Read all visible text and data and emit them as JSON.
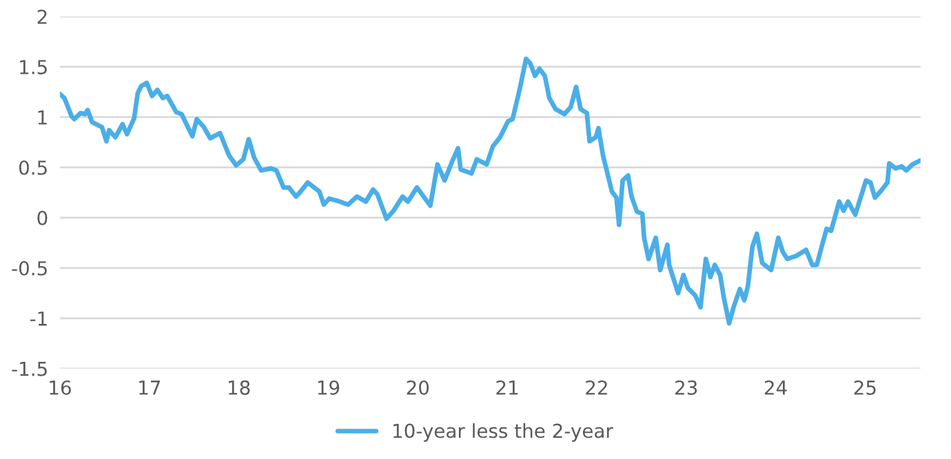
{
  "chart_data": {
    "type": "line",
    "xlim": [
      16,
      25.62
    ],
    "xticks": [
      16,
      17,
      18,
      19,
      20,
      21,
      22,
      23,
      24,
      25
    ],
    "ylim": [
      -1.5,
      2
    ],
    "yticks": [
      -1.5,
      -1,
      -0.5,
      0,
      0.5,
      1,
      1.5,
      2
    ],
    "grid": "y",
    "legend": "bottom",
    "line_style": "solid",
    "series": [
      {
        "name": "10-year less the 2-year",
        "color": "#4aaee8",
        "x": [
          16.0,
          16.05,
          16.13,
          16.16,
          16.23,
          16.28,
          16.31,
          16.36,
          16.47,
          16.52,
          16.55,
          16.62,
          16.7,
          16.75,
          16.83,
          16.87,
          16.91,
          16.97,
          17.03,
          17.09,
          17.15,
          17.2,
          17.3,
          17.36,
          17.48,
          17.53,
          17.61,
          17.68,
          17.79,
          17.89,
          17.97,
          18.05,
          18.11,
          18.17,
          18.25,
          18.36,
          18.42,
          18.5,
          18.56,
          18.64,
          18.69,
          18.77,
          18.9,
          18.95,
          19.01,
          19.13,
          19.22,
          19.32,
          19.42,
          19.5,
          19.55,
          19.65,
          19.73,
          19.83,
          19.89,
          19.99,
          20.14,
          20.22,
          20.3,
          20.38,
          20.45,
          20.48,
          20.6,
          20.66,
          20.77,
          20.84,
          20.92,
          21.01,
          21.06,
          21.14,
          21.21,
          21.26,
          21.31,
          21.36,
          21.42,
          21.47,
          21.54,
          21.64,
          21.71,
          21.77,
          21.82,
          21.89,
          21.92,
          21.99,
          22.02,
          22.07,
          22.12,
          22.17,
          22.22,
          22.25,
          22.29,
          22.35,
          22.39,
          22.45,
          22.51,
          22.53,
          22.58,
          22.66,
          22.71,
          22.79,
          22.81,
          22.91,
          22.97,
          23.02,
          23.1,
          23.16,
          23.22,
          23.27,
          23.32,
          23.38,
          23.42,
          23.48,
          23.53,
          23.6,
          23.65,
          23.69,
          23.74,
          23.79,
          23.85,
          23.95,
          24.03,
          24.08,
          24.13,
          24.23,
          24.34,
          24.41,
          24.46,
          24.52,
          24.57,
          24.62,
          24.71,
          24.76,
          24.81,
          24.89,
          25.01,
          25.06,
          25.11,
          25.19,
          25.25,
          25.27,
          25.34,
          25.41,
          25.46,
          25.53,
          25.62
        ],
        "values": [
          1.23,
          1.19,
          1.01,
          0.98,
          1.04,
          1.03,
          1.07,
          0.95,
          0.9,
          0.76,
          0.87,
          0.8,
          0.93,
          0.83,
          0.99,
          1.24,
          1.31,
          1.34,
          1.21,
          1.27,
          1.19,
          1.21,
          1.05,
          1.03,
          0.81,
          0.98,
          0.9,
          0.79,
          0.84,
          0.62,
          0.52,
          0.58,
          0.78,
          0.6,
          0.47,
          0.49,
          0.47,
          0.3,
          0.3,
          0.21,
          0.26,
          0.35,
          0.26,
          0.13,
          0.19,
          0.16,
          0.13,
          0.21,
          0.16,
          0.28,
          0.23,
          -0.01,
          0.07,
          0.21,
          0.16,
          0.3,
          0.12,
          0.53,
          0.37,
          0.55,
          0.69,
          0.48,
          0.44,
          0.58,
          0.53,
          0.71,
          0.8,
          0.96,
          0.98,
          1.28,
          1.58,
          1.53,
          1.41,
          1.48,
          1.41,
          1.19,
          1.08,
          1.03,
          1.1,
          1.3,
          1.08,
          1.04,
          0.76,
          0.8,
          0.89,
          0.62,
          0.44,
          0.26,
          0.2,
          -0.07,
          0.37,
          0.42,
          0.21,
          0.06,
          0.04,
          -0.2,
          -0.41,
          -0.2,
          -0.52,
          -0.27,
          -0.47,
          -0.75,
          -0.57,
          -0.7,
          -0.77,
          -0.89,
          -0.41,
          -0.59,
          -0.47,
          -0.57,
          -0.79,
          -1.05,
          -0.89,
          -0.71,
          -0.82,
          -0.68,
          -0.29,
          -0.16,
          -0.45,
          -0.52,
          -0.2,
          -0.34,
          -0.41,
          -0.38,
          -0.32,
          -0.47,
          -0.47,
          -0.27,
          -0.11,
          -0.13,
          0.16,
          0.07,
          0.16,
          0.03,
          0.37,
          0.35,
          0.2,
          0.28,
          0.35,
          0.54,
          0.49,
          0.51,
          0.47,
          0.53,
          0.57
        ]
      }
    ]
  }
}
